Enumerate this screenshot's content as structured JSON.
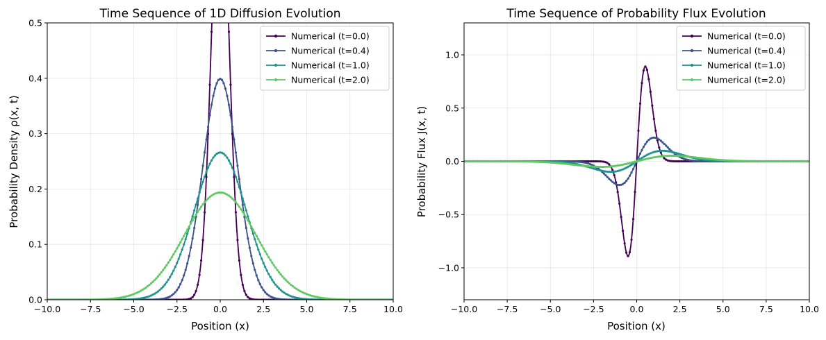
{
  "chart_data": [
    {
      "type": "line",
      "quantity": "density",
      "title": "Time Sequence of 1D Diffusion Evolution",
      "xlabel": "Position (x)",
      "ylabel": "Probability Density ρ(x, t)",
      "xlim": [
        -10,
        10
      ],
      "ylim": [
        0,
        0.5
      ],
      "xticks": [
        -10,
        -7.5,
        -5,
        -2.5,
        0,
        2.5,
        5,
        7.5,
        10
      ],
      "xtick_labels": [
        "−10.0",
        "−7.5",
        "−5.0",
        "−2.5",
        "0.0",
        "2.5",
        "5.0",
        "7.5",
        "10.0"
      ],
      "yticks": [
        0,
        0.1,
        0.2,
        0.3,
        0.4,
        0.5
      ],
      "ytick_labels": [
        "0.0",
        "0.1",
        "0.2",
        "0.3",
        "0.4",
        "0.5"
      ],
      "grid": true,
      "legend_position": "top-right",
      "series": [
        {
          "name": "Numerical (t=0.0)",
          "t": 0.0,
          "sigma": 0.5,
          "color": "#440154"
        },
        {
          "name": "Numerical (t=0.4)",
          "t": 0.4,
          "sigma": 1.0,
          "color": "#3b528b"
        },
        {
          "name": "Numerical (t=1.0)",
          "t": 1.0,
          "sigma": 1.5,
          "color": "#21918c"
        },
        {
          "name": "Numerical (t=2.0)",
          "t": 2.0,
          "sigma": 2.06,
          "color": "#5ec962"
        }
      ]
    },
    {
      "type": "line",
      "quantity": "flux",
      "title": "Time Sequence of Probability Flux Evolution",
      "xlabel": "Position (x)",
      "ylabel": "Probability Flux J(x, t)",
      "xlim": [
        -10,
        10
      ],
      "ylim": [
        -1.3,
        1.3
      ],
      "xticks": [
        -10,
        -7.5,
        -5,
        -2.5,
        0,
        2.5,
        5,
        7.5,
        10
      ],
      "xtick_labels": [
        "−10.0",
        "−7.5",
        "−5.0",
        "−2.5",
        "0.0",
        "2.5",
        "5.0",
        "7.5",
        "10.0"
      ],
      "yticks": [
        -1,
        -0.5,
        0,
        0.5,
        1
      ],
      "ytick_labels": [
        "−1.0",
        "−0.5",
        "0.0",
        "0.5",
        "1.0"
      ],
      "grid": true,
      "legend_position": "top-right",
      "series": [
        {
          "name": "Numerical (t=0.0)",
          "t": 0.0,
          "sigma": 0.5,
          "color": "#440154"
        },
        {
          "name": "Numerical (t=0.4)",
          "t": 0.4,
          "sigma": 1.0,
          "color": "#3b528b"
        },
        {
          "name": "Numerical (t=1.0)",
          "t": 1.0,
          "sigma": 1.5,
          "color": "#21918c"
        },
        {
          "name": "Numerical (t=2.0)",
          "t": 2.0,
          "sigma": 2.06,
          "color": "#5ec962"
        }
      ]
    }
  ]
}
